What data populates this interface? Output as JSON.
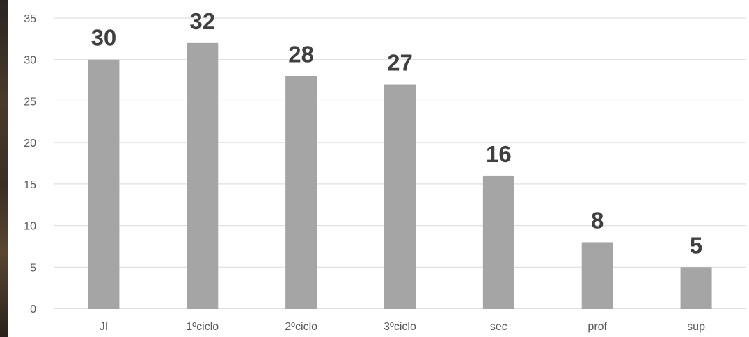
{
  "chart_data": {
    "type": "bar",
    "title": "",
    "xlabel": "",
    "ylabel": "",
    "categories": [
      "JI",
      "1ºciclo",
      "2ºciclo",
      "3ºciclo",
      "sec",
      "prof",
      "sup"
    ],
    "values": [
      30,
      32,
      28,
      27,
      16,
      8,
      5
    ],
    "ylim": [
      0,
      35
    ],
    "yticks": [
      "0",
      "5",
      "10",
      "15",
      "20",
      "25",
      "30",
      "35"
    ],
    "grid": true,
    "legend": "none",
    "bar_color": "#a5a5a5",
    "data_labels": [
      "30",
      "32",
      "28",
      "27",
      "16",
      "8",
      "5"
    ]
  }
}
